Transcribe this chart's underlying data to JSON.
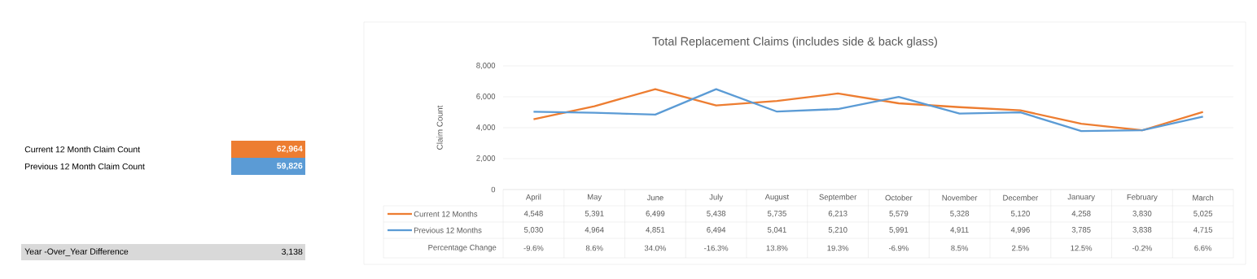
{
  "chart_data": [
    {
      "type": "other",
      "annotations": [
        "Current 12 Month Claim Count",
        "62,964",
        "Previous 12 Month Claim Count",
        "59,826",
        "Year -Over_Year Difference",
        "3,138"
      ]
    },
    {
      "type": "line",
      "title": "Total Replacement Claims (includes side & back glass)",
      "ylabel": "Claim Count",
      "categories": [
        "April",
        "May",
        "June",
        "July",
        "August",
        "September",
        "October",
        "November",
        "December",
        "January",
        "February",
        "March"
      ],
      "series": [
        {
          "name": "Current 12 Months",
          "color": "#ed7d31",
          "values": [
            4548,
            5391,
            6499,
            5438,
            5735,
            6213,
            5579,
            5328,
            5120,
            4258,
            3830,
            5025
          ],
          "value_labels": [
            "4,548",
            "5,391",
            "6,499",
            "5,438",
            "5,735",
            "6,213",
            "5,579",
            "5,328",
            "5,120",
            "4,258",
            "3,830",
            "5,025"
          ]
        },
        {
          "name": "Previous 12 Months",
          "color": "#5b9bd5",
          "values": [
            5030,
            4964,
            4851,
            6494,
            5041,
            5210,
            5991,
            4911,
            4996,
            3785,
            3838,
            4715
          ],
          "value_labels": [
            "5,030",
            "4,964",
            "4,851",
            "6,494",
            "5,041",
            "5,210",
            "5,991",
            "4,911",
            "4,996",
            "3,785",
            "3,838",
            "4,715"
          ]
        }
      ],
      "ylim": [
        0,
        8000
      ],
      "yticks": [
        0,
        {
          "value": 2000,
          "label": "2,000"
        },
        {
          "value": 4000,
          "label": "4,000"
        },
        {
          "value": 6000,
          "label": "6,000"
        },
        {
          "value": 8000,
          "label": "8,000"
        }
      ],
      "grid": "y",
      "legend": "bottom",
      "annotations": [
        "Percentage Change",
        "-9.6%",
        "8.6%",
        "34.0%",
        "-16.3%",
        "13.8%",
        "19.3%",
        "-6.9%",
        "8.5%",
        "2.5%",
        "12.5%",
        "-0.2%",
        "6.6%"
      ]
    }
  ]
}
